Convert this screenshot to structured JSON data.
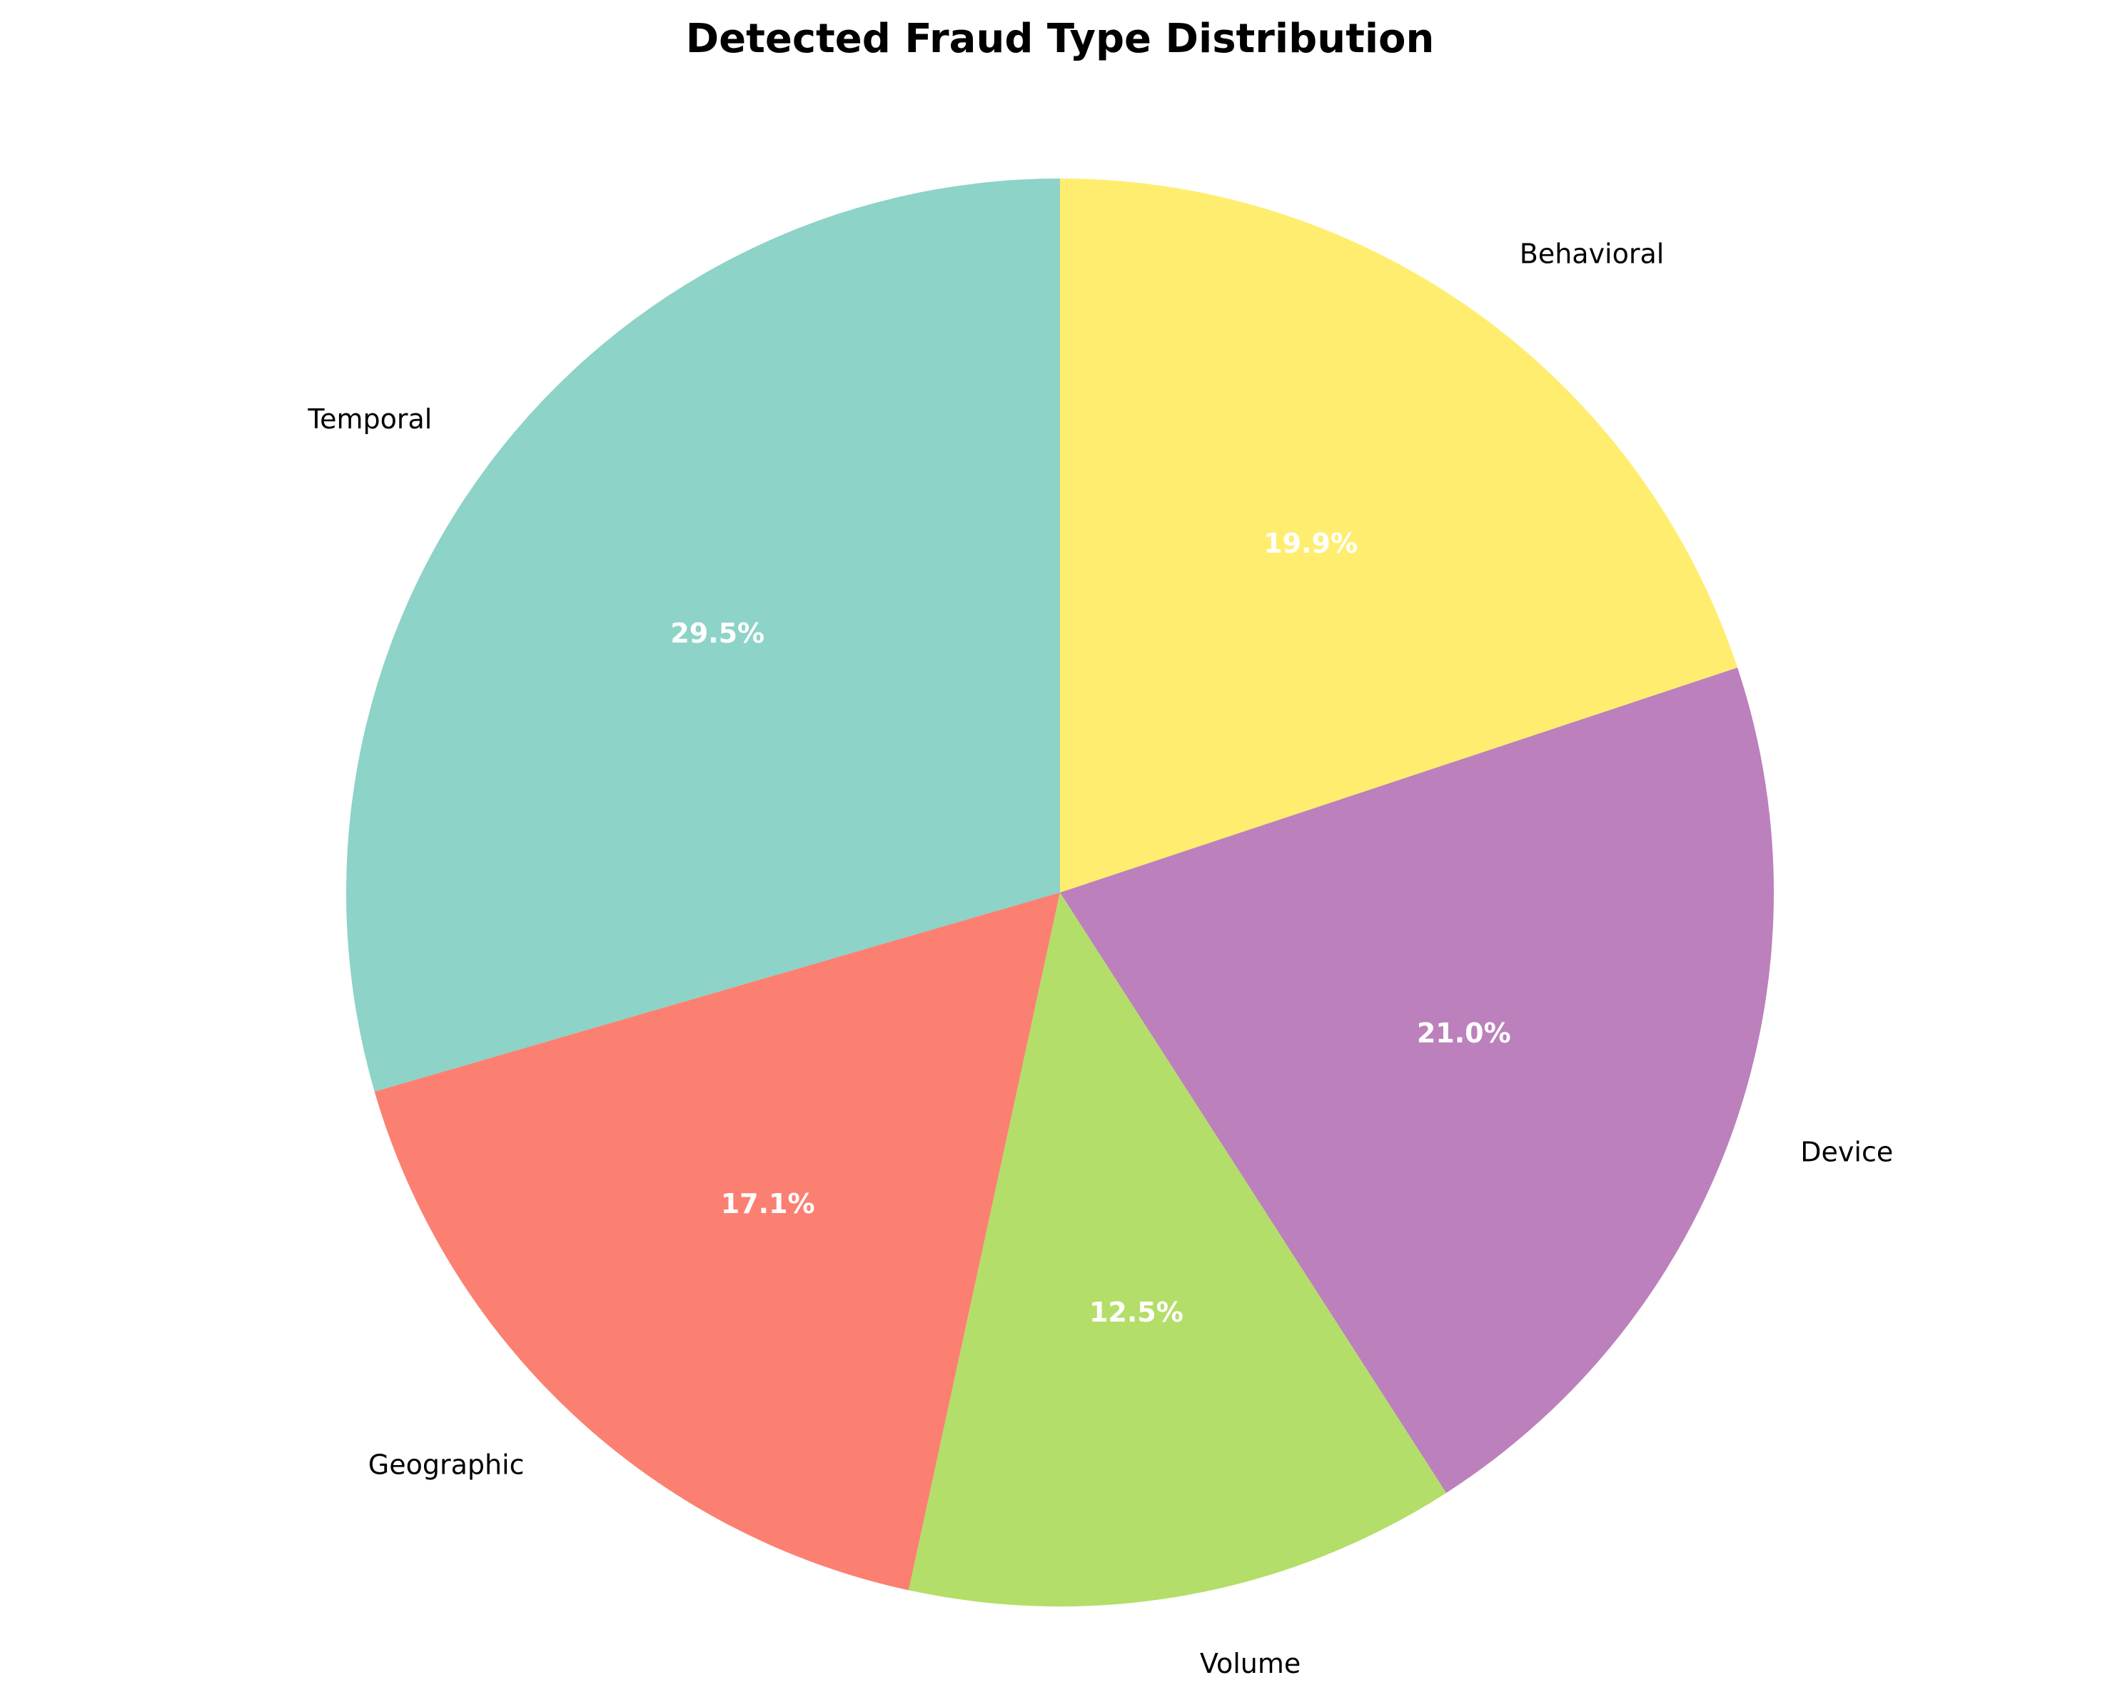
{
  "chart_data": {
    "type": "pie",
    "title": "Detected Fraud Type Distribution",
    "categories": [
      "Temporal",
      "Geographic",
      "Volume",
      "Device",
      "Behavioral"
    ],
    "values": [
      29.5,
      17.1,
      12.5,
      21.0,
      19.9
    ],
    "value_labels": [
      "29.5%",
      "17.1%",
      "12.5%",
      "21.0%",
      "19.9%"
    ],
    "colors": [
      "#8dd3c7",
      "#fb8072",
      "#b3de69",
      "#bc80bd",
      "#ffed6f"
    ],
    "start_angle_deg": 90,
    "direction": "counterclockwise",
    "legend": "none"
  }
}
